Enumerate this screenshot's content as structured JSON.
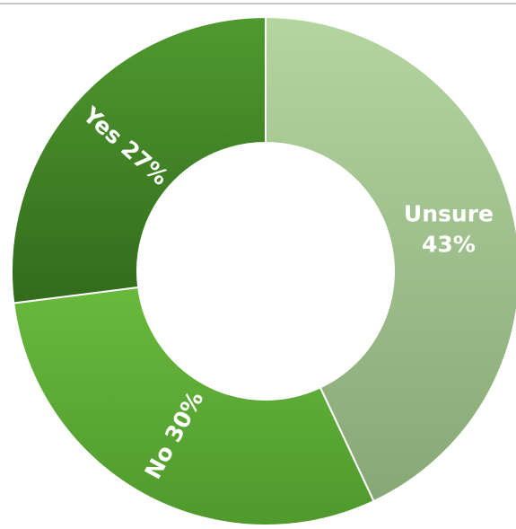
{
  "chart_data": {
    "type": "pie",
    "variant": "donut",
    "categories": [
      "Unsure",
      "No",
      "Yes"
    ],
    "values": [
      43,
      30,
      27
    ],
    "labels": [
      "Unsure 43%",
      "No 30%",
      "Yes 27%"
    ],
    "label_lines": [
      [
        "Unsure",
        "43%"
      ],
      [
        "No 30%"
      ],
      [
        "Yes 27%"
      ]
    ],
    "colors": [
      "#a7c98f",
      "#5fad38",
      "#3f7f24"
    ],
    "legend": "none"
  }
}
